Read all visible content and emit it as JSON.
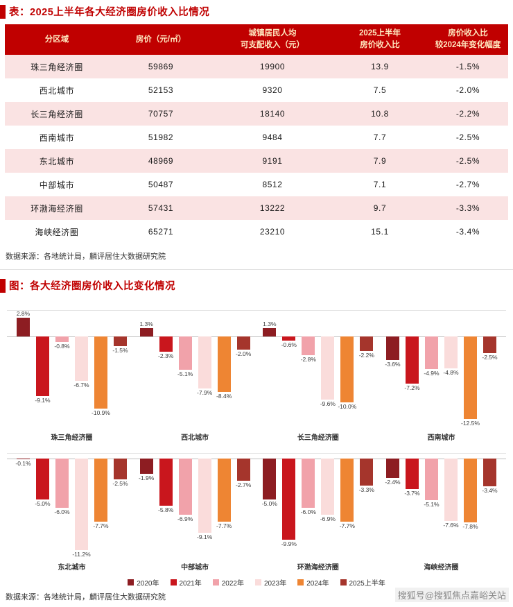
{
  "header": {
    "table_title": "表：2025上半年各大经济圈房价收入比情况",
    "chart_title": "图：各大经济圈房价收入比变化情况"
  },
  "table_source": "数据来源：各地统计局，麟评居住大数据研究院",
  "chart_source": "数据来源：各地统计局，麟评居住大数据研究院",
  "watermark": "搜狐号@搜狐焦点嘉峪关站",
  "colors": {
    "accent": "#C00000",
    "table_header_bg": "#C00000",
    "table_header_text": "#FFE9C0",
    "table_alt_row_bg": "#FAE3E3",
    "zero_line": "#BEBEBE",
    "grid_line": "#E4E4E4"
  },
  "chart_data": [
    {
      "type": "table",
      "title": "2025上半年各大经济圈房价收入比情况",
      "columns": [
        "分区域",
        "房价（元/㎡）",
        "城镇居民人均\n可支配收入（元）",
        "2025上半年\n房价收入比",
        "房价收入比\n较2024年变化幅度"
      ],
      "rows": [
        [
          "珠三角经济圈",
          "59869",
          "19900",
          "13.9",
          "-1.5%"
        ],
        [
          "西北城市",
          "52153",
          "9320",
          "7.5",
          "-2.0%"
        ],
        [
          "长三角经济圈",
          "70757",
          "18140",
          "10.8",
          "-2.2%"
        ],
        [
          "西南城市",
          "51982",
          "9484",
          "7.7",
          "-2.5%"
        ],
        [
          "东北城市",
          "48969",
          "9191",
          "7.9",
          "-2.5%"
        ],
        [
          "中部城市",
          "50487",
          "8512",
          "7.1",
          "-2.7%"
        ],
        [
          "环渤海经济圈",
          "57431",
          "13222",
          "9.7",
          "-3.3%"
        ],
        [
          "海峡经济圈",
          "65271",
          "23210",
          "15.1",
          "-3.4%"
        ]
      ]
    },
    {
      "type": "bar",
      "title": "各大经济圈房价收入比变化情况",
      "categories": [
        "珠三角经济圈",
        "西北城市",
        "长三角经济圈",
        "西南城市",
        "东北城市",
        "中部城市",
        "环渤海经济圈",
        "海峡经济圈"
      ],
      "series": [
        {
          "name": "2020年",
          "color": "#8D1D22",
          "values": [
            2.8,
            1.3,
            1.3,
            -3.6,
            -0.1,
            -1.9,
            -5.0,
            -2.4
          ]
        },
        {
          "name": "2021年",
          "color": "#C9161D",
          "values": [
            -9.1,
            -2.3,
            -0.6,
            -7.2,
            -5.0,
            -5.8,
            -9.9,
            -3.7
          ]
        },
        {
          "name": "2022年",
          "color": "#F1A2AA",
          "values": [
            -0.8,
            -5.1,
            -2.8,
            -4.9,
            -6.0,
            -6.9,
            -6.0,
            -5.1
          ]
        },
        {
          "name": "2023年",
          "color": "#FADCDB",
          "values": [
            -6.7,
            -7.9,
            -9.6,
            -4.8,
            -11.2,
            -9.1,
            -6.9,
            -7.6
          ]
        },
        {
          "name": "2024年",
          "color": "#EE8533",
          "values": [
            -10.9,
            -8.4,
            -10.0,
            -12.5,
            -7.7,
            -7.7,
            -7.7,
            -7.8
          ]
        },
        {
          "name": "2025上半年",
          "color": "#A5352C",
          "values": [
            -1.5,
            -2.0,
            -2.2,
            -2.5,
            -2.5,
            -2.7,
            -3.3,
            -3.4
          ]
        }
      ],
      "value_suffix": "%",
      "baseline": 0,
      "ylim": [
        -13,
        3
      ],
      "panel_layout": [
        4,
        4
      ],
      "legend_position": "bottom",
      "xlabel": "",
      "ylabel": ""
    }
  ]
}
